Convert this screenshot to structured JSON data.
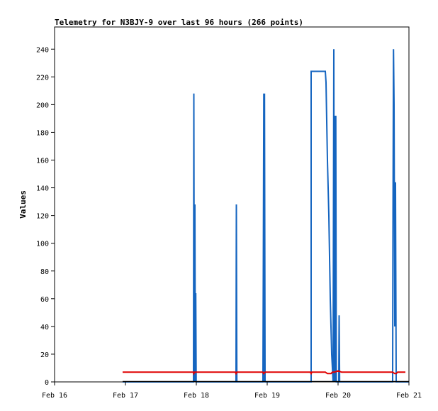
{
  "chart_data": {
    "type": "line",
    "title": "Telemetry for N3BJY-9 over last 96 hours (266 points)",
    "xlabel": "",
    "ylabel": "Values",
    "xlim": [
      0,
      5
    ],
    "ylim": [
      0,
      256
    ],
    "x_ticks": [
      {
        "value": 0,
        "label": "Feb 16"
      },
      {
        "value": 1,
        "label": "Feb 17"
      },
      {
        "value": 2,
        "label": "Feb 18"
      },
      {
        "value": 3,
        "label": "Feb 19"
      },
      {
        "value": 4,
        "label": "Feb 20"
      },
      {
        "value": 5,
        "label": "Feb 21"
      }
    ],
    "y_ticks": [
      0,
      20,
      40,
      60,
      80,
      100,
      120,
      140,
      160,
      180,
      200,
      220,
      240
    ],
    "grid": false,
    "legend": "none",
    "series": [
      {
        "color": "#1565c0",
        "points": [
          [
            0.96,
            0
          ],
          [
            1.96,
            0
          ],
          [
            1.965,
            208
          ],
          [
            1.972,
            0
          ],
          [
            1.98,
            128
          ],
          [
            1.986,
            0
          ],
          [
            1.992,
            64
          ],
          [
            1.998,
            0
          ],
          [
            2.56,
            0
          ],
          [
            2.565,
            128
          ],
          [
            2.572,
            0
          ],
          [
            2.94,
            0
          ],
          [
            2.945,
            80
          ],
          [
            2.952,
            208
          ],
          [
            2.958,
            0
          ],
          [
            2.962,
            208
          ],
          [
            2.97,
            0
          ],
          [
            3.62,
            0
          ],
          [
            3.62,
            224
          ],
          [
            3.82,
            224
          ],
          [
            3.83,
            216
          ],
          [
            3.85,
            160
          ],
          [
            3.87,
            120
          ],
          [
            3.89,
            60
          ],
          [
            3.91,
            20
          ],
          [
            3.93,
            0
          ],
          [
            3.94,
            240
          ],
          [
            3.948,
            0
          ],
          [
            3.955,
            192
          ],
          [
            3.962,
            0
          ],
          [
            3.968,
            192
          ],
          [
            3.975,
            0
          ],
          [
            4.01,
            0
          ],
          [
            4.015,
            48
          ],
          [
            4.022,
            0
          ],
          [
            4.77,
            0
          ],
          [
            4.775,
            120
          ],
          [
            4.782,
            240
          ],
          [
            4.79,
            200
          ],
          [
            4.8,
            40
          ],
          [
            4.81,
            144
          ],
          [
            4.82,
            0
          ],
          [
            5.0,
            0
          ]
        ]
      },
      {
        "color": "#e00000",
        "points": [
          [
            0.96,
            7
          ],
          [
            1.96,
            7
          ],
          [
            1.965,
            6
          ],
          [
            1.975,
            7
          ],
          [
            2.55,
            7
          ],
          [
            2.56,
            6
          ],
          [
            2.57,
            7
          ],
          [
            2.94,
            7
          ],
          [
            2.95,
            6
          ],
          [
            2.97,
            7
          ],
          [
            3.61,
            7
          ],
          [
            3.62,
            6
          ],
          [
            3.63,
            7
          ],
          [
            3.82,
            7
          ],
          [
            3.85,
            6
          ],
          [
            3.9,
            6
          ],
          [
            3.92,
            7
          ],
          [
            3.95,
            7
          ],
          [
            4.0,
            8
          ],
          [
            4.05,
            7
          ],
          [
            4.77,
            7
          ],
          [
            4.8,
            6
          ],
          [
            4.82,
            6
          ],
          [
            4.84,
            7
          ],
          [
            4.95,
            7
          ]
        ]
      }
    ]
  }
}
